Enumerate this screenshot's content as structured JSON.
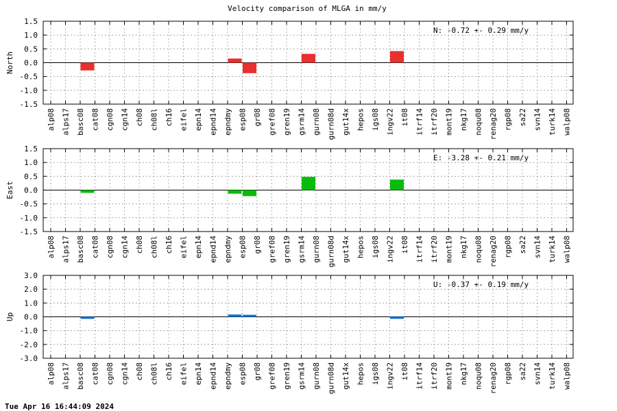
{
  "footer": "Tue Apr 16 16:44:09 2024",
  "chart_data": {
    "type": "bar",
    "title": "Velocity comparison of MLGA in mm/y",
    "categories": [
      "alp08",
      "alps17",
      "basc08",
      "cat08",
      "cgn08",
      "cgn14",
      "ch08",
      "ch08l",
      "ch16",
      "eifel",
      "epn14",
      "epnd14",
      "epndmy",
      "esp08",
      "gr08",
      "gref08",
      "gren19",
      "gsrm14",
      "gurn08",
      "gurn08d",
      "gut14x",
      "hepos",
      "igs08",
      "ingv22",
      "it08",
      "itrf14",
      "itrf20",
      "mont19",
      "nkg17",
      "noqu08",
      "renag20",
      "rgp08",
      "sa22",
      "svn14",
      "turk14",
      "walp08"
    ],
    "grid": true,
    "panels": [
      {
        "id": "north",
        "ylabel": "North",
        "ylim": [
          -1.5,
          1.5
        ],
        "yticks": [
          1.5,
          1.0,
          0.5,
          0.0,
          -0.5,
          -1.0,
          -1.5
        ],
        "ytick_labels": [
          "1.5",
          "1.0",
          "0.5",
          "0.0",
          "-0.5",
          "-1.0",
          "-1.5"
        ],
        "color": "#e8302f",
        "stat_label": "N:  -0.72 +-  0.29 mm/y",
        "values": {
          "basc08": -0.28,
          "epndmy": 0.15,
          "esp08": -0.38,
          "gsrm14": 0.32,
          "ingv22": 0.42
        }
      },
      {
        "id": "east",
        "ylabel": "East",
        "ylim": [
          -1.5,
          1.5
        ],
        "yticks": [
          1.5,
          1.0,
          0.5,
          0.0,
          -0.5,
          -1.0,
          -1.5
        ],
        "ytick_labels": [
          "1.5",
          "1.0",
          "0.5",
          "0.0",
          "-0.5",
          "-1.0",
          "-1.5"
        ],
        "color": "#0bbb0b",
        "stat_label": "E:  -3.28 +-  0.21 mm/y",
        "values": {
          "basc08": -0.1,
          "epndmy": -0.13,
          "esp08": -0.22,
          "gsrm14": 0.48,
          "ingv22": 0.38
        }
      },
      {
        "id": "up",
        "ylabel": "Up",
        "ylim": [
          -3.0,
          3.0
        ],
        "yticks": [
          3.0,
          2.0,
          1.0,
          0.0,
          -1.0,
          -2.0,
          -3.0
        ],
        "ytick_labels": [
          "3.0",
          "2.0",
          "1.0",
          "0.0",
          "-1.0",
          "-2.0",
          "-3.0"
        ],
        "color": "#1177e0",
        "stat_label": "U:  -0.37 +-  0.19 mm/y",
        "values": {
          "basc08": -0.15,
          "epndmy": 0.17,
          "esp08": 0.12,
          "ingv22": -0.14
        }
      }
    ]
  }
}
